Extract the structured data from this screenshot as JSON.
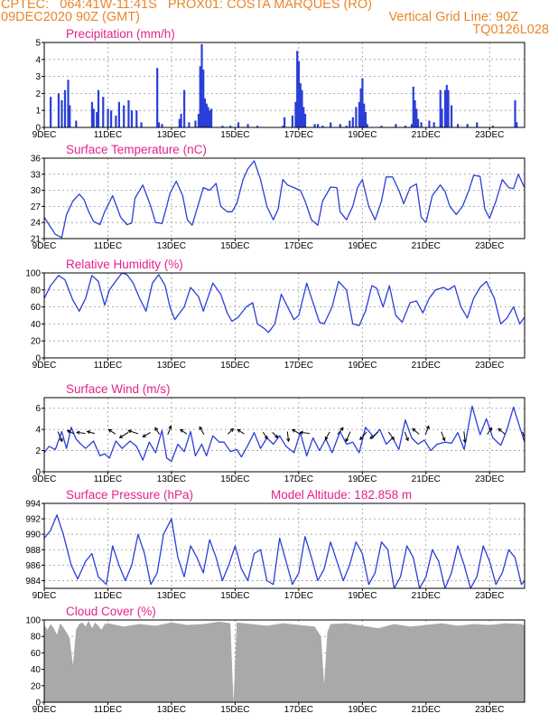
{
  "header": {
    "line1_left": "CPTEC:   064:41W-11:41S   PROX01: COSTA MARQUES (RO)",
    "line2_left": "09DEC2020 90Z (GMT)",
    "line2_right": "Vertical Grid Line: 90Z",
    "line3_right": "TQ0126L028"
  },
  "colors": {
    "header": "#e8862a",
    "title": "#e4228c",
    "line": "#2a3fd8",
    "bar": "#2a3fd8",
    "arrow": "#000000",
    "cloud": "#a9a9a9",
    "grid": "#9a9a9a"
  },
  "x_ticks": [
    "9DEC",
    "11DEC",
    "13DEC",
    "15DEC",
    "17DEC",
    "19DEC",
    "21DEC",
    "23DEC"
  ],
  "x_tick_days": [
    0,
    2,
    4,
    6,
    8,
    10,
    12,
    14
  ],
  "x_range_days": [
    0,
    15.1
  ],
  "chart_data": [
    {
      "type": "bar",
      "title": "Precipitation (mm/h)",
      "ylim": [
        0,
        5
      ],
      "yticks": [
        "0",
        "1",
        "2",
        "3",
        "4",
        "5"
      ],
      "grid": true,
      "x_days": [
        0.2,
        0.45,
        0.55,
        0.65,
        0.75,
        0.8,
        1.0,
        1.5,
        1.55,
        1.65,
        1.7,
        1.85,
        2.0,
        2.1,
        2.25,
        2.35,
        2.5,
        2.65,
        2.75,
        2.9,
        3.05,
        3.55,
        3.6,
        3.7,
        4.25,
        4.3,
        4.4,
        4.55,
        4.75,
        4.85,
        4.9,
        4.95,
        5.0,
        5.05,
        5.1,
        5.15,
        5.2,
        5.25,
        5.6,
        5.85,
        6.1,
        6.4,
        6.7,
        7.5,
        7.55,
        7.8,
        7.9,
        7.95,
        8.0,
        8.05,
        8.1,
        8.15,
        8.2,
        8.5,
        8.6,
        8.75,
        9.0,
        9.3,
        9.5,
        9.6,
        9.7,
        9.8,
        9.9,
        9.95,
        10.0,
        10.05,
        10.1,
        10.15,
        10.6,
        11.05,
        11.35,
        11.55,
        11.6,
        11.65,
        11.7,
        11.75,
        11.85,
        12.1,
        12.25,
        12.45,
        12.5,
        12.6,
        12.65,
        12.7,
        12.8,
        13.0,
        13.3,
        13.6,
        14.1,
        14.8,
        14.85
      ],
      "values": [
        1.8,
        2.0,
        1.6,
        2.2,
        2.8,
        1.3,
        0.4,
        1.5,
        1.1,
        0.9,
        2.2,
        1.8,
        1.1,
        1.0,
        0.7,
        1.5,
        1.3,
        1.6,
        1.0,
        1.0,
        0.3,
        3.5,
        0.3,
        0.2,
        0.5,
        0.8,
        2.2,
        0.3,
        0.4,
        0.8,
        3.6,
        4.9,
        3.4,
        1.7,
        1.4,
        1.2,
        1.0,
        1.1,
        0.1,
        0.1,
        0.3,
        0.2,
        0.1,
        0.1,
        0.6,
        0.7,
        1.5,
        4.5,
        3.9,
        2.6,
        2.2,
        1.2,
        0.8,
        0.2,
        0.2,
        0.1,
        0.3,
        0.2,
        0.1,
        0.4,
        0.6,
        1.2,
        1.5,
        2.3,
        2.9,
        1.4,
        0.9,
        0.2,
        0.1,
        0.2,
        0.1,
        0.2,
        2.4,
        1.6,
        1.1,
        0.5,
        0.3,
        0.4,
        0.3,
        2.2,
        1.1,
        2.2,
        2.5,
        2.2,
        1.3,
        0.2,
        0.2,
        0.3,
        0.1,
        1.6,
        0.3
      ]
    },
    {
      "type": "line",
      "title": "Surface Temperature (nC)",
      "ylim": [
        21,
        36
      ],
      "yticks": [
        "21",
        "24",
        "27",
        "30",
        "33",
        "36"
      ],
      "grid": true,
      "x": [
        0,
        0.15,
        0.35,
        0.55,
        0.7,
        0.9,
        1.1,
        1.25,
        1.4,
        1.55,
        1.75,
        1.9,
        2.15,
        2.4,
        2.6,
        2.75,
        2.85,
        3.1,
        3.35,
        3.5,
        3.7,
        3.85,
        3.95,
        4.15,
        4.35,
        4.5,
        4.65,
        4.85,
        5.0,
        5.2,
        5.4,
        5.55,
        5.75,
        5.9,
        6.05,
        6.25,
        6.4,
        6.6,
        6.8,
        7.0,
        7.2,
        7.35,
        7.5,
        7.65,
        7.85,
        8.05,
        8.2,
        8.4,
        8.6,
        8.75,
        9.0,
        9.2,
        9.3,
        9.5,
        9.7,
        9.85,
        10.0,
        10.2,
        10.4,
        10.6,
        10.75,
        10.95,
        11.15,
        11.3,
        11.5,
        11.7,
        11.85,
        12.0,
        12.2,
        12.45,
        12.6,
        12.75,
        12.95,
        13.15,
        13.35,
        13.5,
        13.7,
        13.85,
        14.0,
        14.2,
        14.4,
        14.6,
        14.75,
        14.9,
        15.1
      ],
      "values": [
        25,
        23.6,
        21.8,
        21.2,
        25.5,
        28,
        29.3,
        28.3,
        26,
        24.2,
        23.6,
        26,
        29,
        25,
        23.6,
        23.9,
        28.5,
        31,
        27,
        24,
        23.8,
        27,
        29.4,
        31.7,
        29,
        24.5,
        23.5,
        27.5,
        30.5,
        30,
        31.3,
        27,
        26,
        26,
        27.5,
        32,
        34,
        35.5,
        32,
        27,
        24.5,
        26.5,
        32,
        31,
        30.5,
        30,
        28,
        24.5,
        23.5,
        28,
        30.6,
        30.5,
        26,
        24.5,
        27,
        30.5,
        32,
        27,
        24.5,
        28,
        32.5,
        32.5,
        30,
        27.5,
        30.5,
        31.2,
        25,
        24,
        29,
        31,
        29.8,
        27,
        25.5,
        27,
        30,
        32.8,
        32.6,
        26.5,
        24.8,
        28,
        32,
        30.5,
        30.3,
        33,
        30.5
      ]
    },
    {
      "type": "line",
      "title": "Relative Humidity (%)",
      "ylim": [
        0,
        100
      ],
      "yticks": [
        "0",
        "20",
        "40",
        "60",
        "80",
        "100"
      ],
      "grid": true,
      "x": [
        0,
        0.2,
        0.45,
        0.65,
        0.9,
        1.1,
        1.3,
        1.5,
        1.7,
        1.9,
        2.05,
        2.3,
        2.45,
        2.6,
        2.8,
        3.0,
        3.2,
        3.4,
        3.6,
        3.8,
        3.95,
        4.1,
        4.4,
        4.6,
        4.85,
        5.0,
        5.3,
        5.55,
        5.75,
        5.9,
        6.1,
        6.35,
        6.55,
        6.7,
        6.9,
        7.05,
        7.25,
        7.45,
        7.65,
        7.85,
        8.0,
        8.25,
        8.45,
        8.65,
        8.8,
        9.05,
        9.25,
        9.5,
        9.7,
        9.9,
        10.1,
        10.3,
        10.45,
        10.65,
        10.85,
        11.05,
        11.25,
        11.5,
        11.7,
        11.9,
        12.1,
        12.3,
        12.55,
        12.7,
        12.9,
        13.1,
        13.3,
        13.5,
        13.7,
        13.9,
        14.15,
        14.35,
        14.55,
        14.75,
        14.95,
        15.1
      ],
      "values": [
        70,
        85,
        97,
        92,
        68,
        55,
        70,
        97,
        90,
        62,
        80,
        93,
        100,
        98,
        88,
        70,
        55,
        88,
        98,
        85,
        60,
        45,
        60,
        83,
        72,
        55,
        88,
        75,
        53,
        43,
        48,
        60,
        65,
        40,
        35,
        30,
        40,
        75,
        60,
        45,
        50,
        88,
        65,
        42,
        40,
        60,
        90,
        80,
        40,
        38,
        55,
        85,
        82,
        60,
        85,
        50,
        42,
        65,
        67,
        53,
        70,
        80,
        83,
        80,
        85,
        60,
        47,
        70,
        83,
        90,
        70,
        40,
        47,
        60,
        40,
        48
      ]
    },
    {
      "type": "line",
      "title": "Surface Wind (m/s)",
      "ylim": [
        0,
        7
      ],
      "yticks": [
        "0",
        "2",
        "4",
        "6"
      ],
      "grid": true,
      "x": [
        0,
        0.15,
        0.35,
        0.55,
        0.7,
        0.85,
        1.0,
        1.15,
        1.3,
        1.55,
        1.75,
        1.9,
        2.05,
        2.25,
        2.45,
        2.7,
        2.9,
        3.1,
        3.3,
        3.5,
        3.7,
        3.85,
        4.0,
        4.2,
        4.4,
        4.6,
        4.75,
        4.95,
        5.1,
        5.3,
        5.5,
        5.65,
        5.85,
        6.05,
        6.2,
        6.4,
        6.6,
        6.8,
        7.0,
        7.2,
        7.4,
        7.6,
        7.85,
        8.05,
        8.25,
        8.45,
        8.65,
        8.85,
        9.05,
        9.3,
        9.5,
        9.7,
        9.9,
        10.1,
        10.35,
        10.55,
        10.75,
        10.95,
        11.15,
        11.35,
        11.55,
        11.75,
        11.95,
        12.15,
        12.35,
        12.6,
        12.8,
        13.0,
        13.2,
        13.45,
        13.7,
        13.9,
        14.1,
        14.35,
        14.55,
        14.75,
        14.95,
        15.1
      ],
      "values": [
        1.8,
        2.4,
        2.1,
        3.8,
        2.2,
        4.2,
        3.1,
        2.6,
        2.2,
        2.9,
        1.5,
        1.7,
        1.3,
        2.9,
        2.2,
        2.9,
        2.4,
        1.1,
        2.8,
        1.8,
        3.9,
        1.3,
        1.0,
        2.6,
        1.9,
        3.8,
        1.5,
        2.6,
        1.5,
        3.4,
        2.8,
        2.8,
        1.9,
        2.1,
        1.4,
        2.5,
        3.7,
        2.2,
        3.2,
        2.6,
        3.4,
        2.4,
        1.8,
        3.7,
        1.5,
        3.2,
        2.0,
        3.1,
        1.8,
        3.8,
        2.6,
        2.8,
        1.8,
        4.2,
        3.3,
        4.0,
        2.6,
        3.2,
        2.1,
        4.9,
        3.2,
        2.6,
        3.0,
        2.0,
        2.6,
        2.8,
        2.7,
        3.7,
        2.1,
        6.2,
        3.5,
        5.0,
        3.2,
        2.5,
        4.0,
        6.1,
        4.2,
        2.8
      ],
      "arrows": [
        {
          "x": 0.45,
          "u": 0.4,
          "v": -0.9
        },
        {
          "x": 0.9,
          "u": -0.6,
          "v": 0.3
        },
        {
          "x": 1.25,
          "u": -0.8,
          "v": 0.1
        },
        {
          "x": 1.55,
          "u": -0.7,
          "v": 0.2
        },
        {
          "x": 2.2,
          "u": -0.6,
          "v": 0.4
        },
        {
          "x": 2.6,
          "u": -0.8,
          "v": -0.5
        },
        {
          "x": 2.9,
          "u": -0.9,
          "v": 0.3
        },
        {
          "x": 3.3,
          "u": -0.7,
          "v": -0.4
        },
        {
          "x": 3.6,
          "u": -0.4,
          "v": 0.6
        },
        {
          "x": 3.9,
          "u": 0.3,
          "v": 0.8
        },
        {
          "x": 4.45,
          "u": -0.6,
          "v": 0.4
        },
        {
          "x": 5.0,
          "u": -0.4,
          "v": 0.7
        },
        {
          "x": 5.8,
          "u": 0.5,
          "v": 0.5
        },
        {
          "x": 6.25,
          "u": -0.6,
          "v": 0.4
        },
        {
          "x": 6.9,
          "u": 0.4,
          "v": -0.6
        },
        {
          "x": 7.2,
          "u": 0.5,
          "v": -0.5
        },
        {
          "x": 7.65,
          "u": 0.1,
          "v": -0.9
        },
        {
          "x": 8.0,
          "u": -0.7,
          "v": 0.4
        },
        {
          "x": 8.3,
          "u": -0.9,
          "v": 0.1
        },
        {
          "x": 8.95,
          "u": -0.4,
          "v": -0.7
        },
        {
          "x": 9.25,
          "u": 0.5,
          "v": 0.6
        },
        {
          "x": 9.6,
          "u": -0.4,
          "v": -0.9
        },
        {
          "x": 10.1,
          "u": -0.6,
          "v": -0.7
        },
        {
          "x": 10.45,
          "u": -0.7,
          "v": -0.6
        },
        {
          "x": 10.85,
          "u": 0.5,
          "v": -0.7
        },
        {
          "x": 11.35,
          "u": 0.3,
          "v": -0.8
        },
        {
          "x": 11.75,
          "u": -0.6,
          "v": 0.5
        },
        {
          "x": 12.0,
          "u": 0.3,
          "v": 0.8
        },
        {
          "x": 12.5,
          "u": 0.3,
          "v": -0.8
        },
        {
          "x": 13.2,
          "u": 0.1,
          "v": -1.0
        },
        {
          "x": 13.95,
          "u": 0.4,
          "v": 0.6
        },
        {
          "x": 14.45,
          "u": -0.6,
          "v": 0.5
        },
        {
          "x": 15.05,
          "u": 0.3,
          "v": -0.8
        }
      ]
    },
    {
      "type": "line",
      "title": "Surface Pressure (hPa)",
      "annotation": "Model Altitude: 182.858  m",
      "ylim": [
        983,
        994
      ],
      "yticks": [
        "984",
        "986",
        "988",
        "990",
        "992",
        "994"
      ],
      "grid": true,
      "x": [
        0,
        0.2,
        0.4,
        0.6,
        0.85,
        1.05,
        1.3,
        1.5,
        1.7,
        1.95,
        2.15,
        2.35,
        2.55,
        2.75,
        2.95,
        3.15,
        3.35,
        3.55,
        3.75,
        4.0,
        4.2,
        4.4,
        4.6,
        4.8,
        5.0,
        5.2,
        5.4,
        5.6,
        5.8,
        6.0,
        6.2,
        6.4,
        6.6,
        6.8,
        7.0,
        7.2,
        7.4,
        7.6,
        7.8,
        8.0,
        8.2,
        8.4,
        8.6,
        8.8,
        9.0,
        9.2,
        9.4,
        9.6,
        9.8,
        10.0,
        10.2,
        10.4,
        10.6,
        10.8,
        11.0,
        11.2,
        11.4,
        11.6,
        11.8,
        12.0,
        12.2,
        12.4,
        12.6,
        12.8,
        13.0,
        13.2,
        13.4,
        13.6,
        13.8,
        14.0,
        14.2,
        14.4,
        14.6,
        14.8,
        15.0,
        15.1
      ],
      "values": [
        989.5,
        990.5,
        992.5,
        990,
        986,
        984.2,
        986.5,
        987.5,
        984.5,
        983.5,
        988.5,
        986,
        984,
        986,
        990,
        987.5,
        983.5,
        985,
        990,
        992,
        987,
        984.5,
        988.5,
        987,
        985,
        989.3,
        987,
        984,
        986,
        988.5,
        985.5,
        984,
        987.5,
        988,
        984,
        983.5,
        989.5,
        986.5,
        983.5,
        985,
        989.7,
        987,
        984,
        985.5,
        989,
        986.5,
        984,
        986,
        989,
        987.5,
        983.5,
        985,
        989,
        988,
        983,
        984.5,
        988.5,
        987,
        983,
        984.5,
        988,
        986.5,
        983,
        985,
        988.5,
        986,
        983,
        984.5,
        988.5,
        986.5,
        983.5,
        985,
        988,
        987,
        983.5,
        984
      ]
    },
    {
      "type": "area",
      "title": "Cloud Cover (%)",
      "ylim": [
        0,
        100
      ],
      "yticks": [
        "0",
        "20",
        "40",
        "60",
        "80",
        "100"
      ],
      "grid": true,
      "x": [
        0,
        0.1,
        0.2,
        0.3,
        0.4,
        0.5,
        0.6,
        0.7,
        0.8,
        0.9,
        1.0,
        1.1,
        1.2,
        1.3,
        1.4,
        1.5,
        1.6,
        1.7,
        1.8,
        1.9,
        2.0,
        2.5,
        3.0,
        3.5,
        4.0,
        4.5,
        5.0,
        5.5,
        5.85,
        5.95,
        6.05,
        6.5,
        7.0,
        7.5,
        8.0,
        8.5,
        8.7,
        8.8,
        8.9,
        9.0,
        9.5,
        10.0,
        10.5,
        11.0,
        11.5,
        12.0,
        12.5,
        13.0,
        13.5,
        14.0,
        14.5,
        15.0,
        15.1
      ],
      "values": [
        94,
        88,
        95,
        90,
        82,
        96,
        91,
        85,
        78,
        45,
        88,
        95,
        97,
        92,
        99,
        90,
        97,
        93,
        88,
        95,
        96,
        92,
        95,
        93,
        97,
        94,
        95,
        98,
        96,
        0,
        97,
        95,
        93,
        96,
        94,
        92,
        80,
        22,
        85,
        95,
        96,
        93,
        90,
        95,
        92,
        94,
        96,
        93,
        95,
        94,
        96,
        95,
        93
      ]
    }
  ]
}
